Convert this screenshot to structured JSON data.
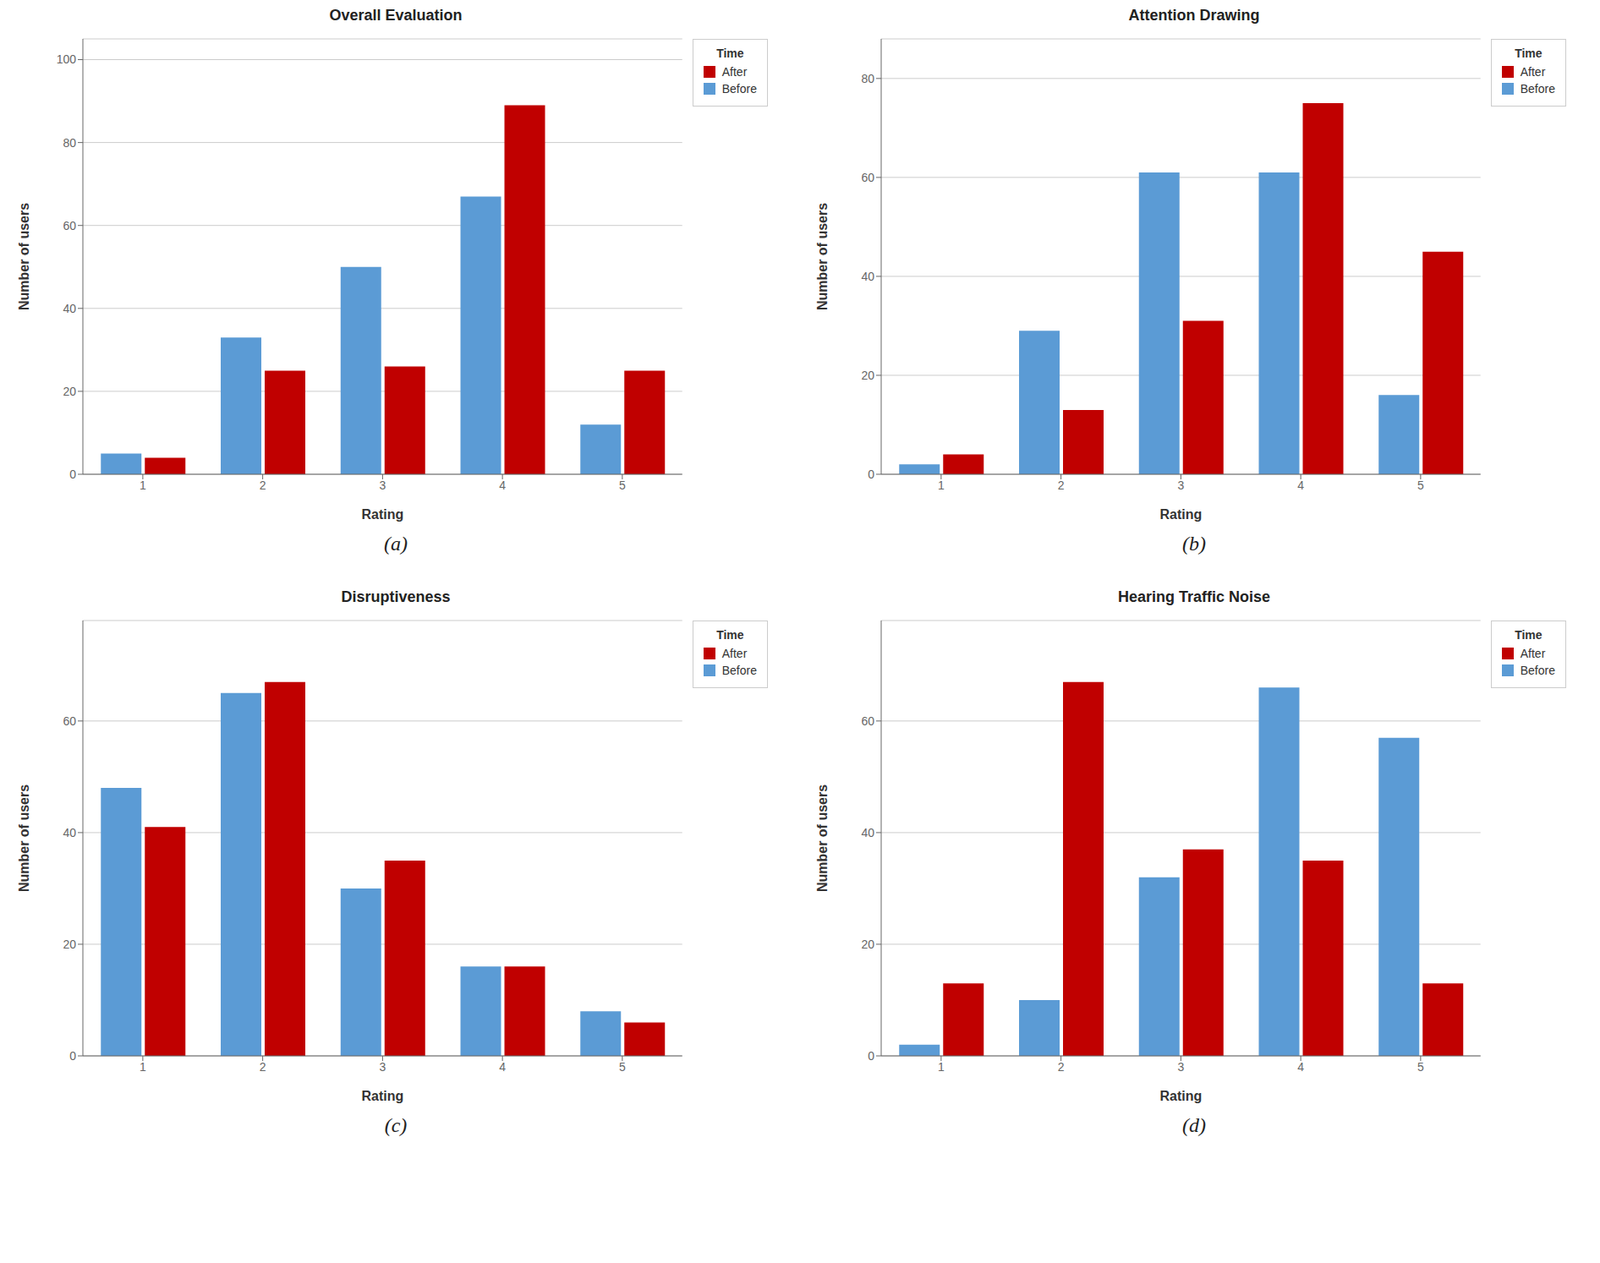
{
  "chart_data": [
    {
      "type": "bar",
      "title": "Overall Evaluation",
      "annotation": "(a)",
      "categories": [
        "1",
        "2",
        "3",
        "4",
        "5"
      ],
      "xlabel": "Rating",
      "ylabel": "Number of users",
      "legend_title": "Time",
      "series": [
        {
          "name": "Before",
          "color": "#5B9BD5",
          "values": [
            5,
            33,
            50,
            67,
            12
          ]
        },
        {
          "name": "After",
          "color": "#C00000",
          "values": [
            4,
            25,
            26,
            89,
            25
          ]
        }
      ],
      "ylim": [
        0,
        105
      ],
      "yticks": [
        0,
        20,
        40,
        60,
        80,
        100
      ],
      "grid": true,
      "legend": "upper right"
    },
    {
      "type": "bar",
      "title": "Attention Drawing",
      "annotation": "(b)",
      "categories": [
        "1",
        "2",
        "3",
        "4",
        "5"
      ],
      "xlabel": "Rating",
      "ylabel": "Number of users",
      "legend_title": "Time",
      "series": [
        {
          "name": "Before",
          "color": "#5B9BD5",
          "values": [
            2,
            29,
            61,
            61,
            16
          ]
        },
        {
          "name": "After",
          "color": "#C00000",
          "values": [
            4,
            13,
            31,
            75,
            45
          ]
        }
      ],
      "ylim": [
        0,
        88
      ],
      "yticks": [
        0,
        20,
        40,
        60,
        80
      ],
      "grid": true,
      "legend": "upper right"
    },
    {
      "type": "bar",
      "title": "Disruptiveness",
      "annotation": "(c)",
      "categories": [
        "1",
        "2",
        "3",
        "4",
        "5"
      ],
      "xlabel": "Rating",
      "ylabel": "Number of users",
      "legend_title": "Time",
      "series": [
        {
          "name": "Before",
          "color": "#5B9BD5",
          "values": [
            48,
            65,
            30,
            16,
            8
          ]
        },
        {
          "name": "After",
          "color": "#C00000",
          "values": [
            41,
            67,
            35,
            16,
            6
          ]
        }
      ],
      "ylim": [
        0,
        78
      ],
      "yticks": [
        0,
        20,
        40,
        60
      ],
      "grid": true,
      "legend": "upper right"
    },
    {
      "type": "bar",
      "title": "Hearing Traffic Noise",
      "annotation": "(d)",
      "categories": [
        "1",
        "2",
        "3",
        "4",
        "5"
      ],
      "xlabel": "Rating",
      "ylabel": "Number of users",
      "legend_title": "Time",
      "series": [
        {
          "name": "Before",
          "color": "#5B9BD5",
          "values": [
            2,
            10,
            32,
            66,
            57
          ]
        },
        {
          "name": "After",
          "color": "#C00000",
          "values": [
            13,
            67,
            37,
            35,
            13
          ]
        }
      ],
      "ylim": [
        0,
        78
      ],
      "yticks": [
        0,
        20,
        40,
        60
      ],
      "grid": true,
      "legend": "upper right"
    }
  ]
}
